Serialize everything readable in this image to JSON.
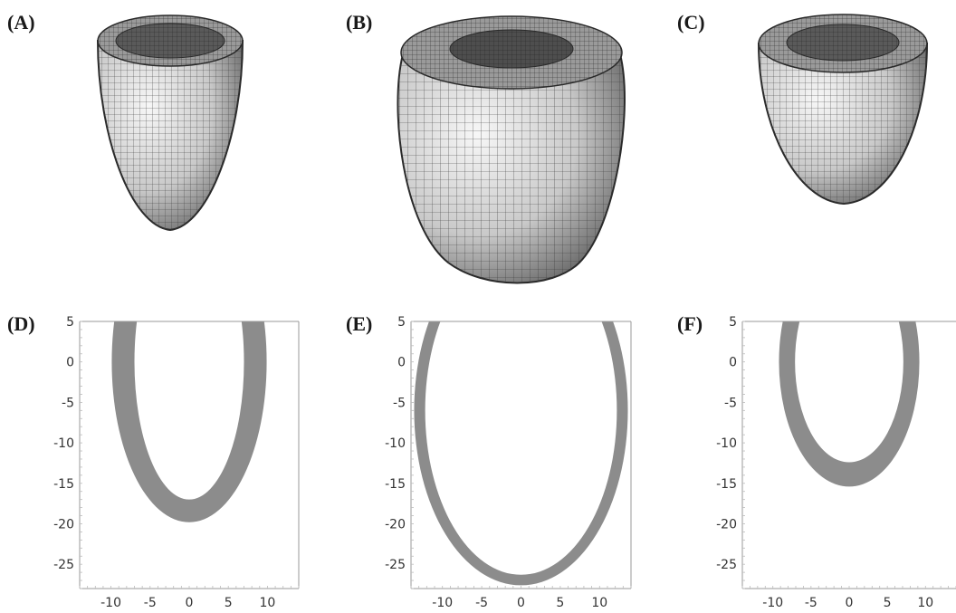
{
  "figure": {
    "colors": {
      "mesh_fill_light": "#f2f2f2",
      "mesh_fill_dark": "#6e6e6e",
      "mesh_line": "#3a3a3a",
      "wall_band": "#8c8c8c",
      "axis": "#999999"
    }
  },
  "panels_3d": [
    {
      "label": "(A)",
      "shape": "truncated-ellipsoid-mesh",
      "proportion": "narrow"
    },
    {
      "label": "(B)",
      "shape": "truncated-ellipsoid-mesh",
      "proportion": "wide"
    },
    {
      "label": "(C)",
      "shape": "truncated-ellipsoid-mesh",
      "proportion": "short"
    }
  ],
  "chart_data": [
    {
      "type": "area",
      "label": "(D)",
      "xlim": [
        -14,
        14
      ],
      "ylim": [
        -28,
        5
      ],
      "xticks": [
        "-10",
        "-5",
        "0",
        "5",
        "10"
      ],
      "xtick_values": [
        -10,
        -5,
        0,
        5,
        10
      ],
      "yticks": [
        "5",
        "0",
        "-5",
        "-10",
        "-15",
        "-20",
        "-25"
      ],
      "ytick_values": [
        5,
        0,
        -5,
        -10,
        -15,
        -20,
        -25
      ],
      "outer_ellipse": {
        "center": [
          0,
          0
        ],
        "rx": 9.9,
        "ry": 19.8
      },
      "inner_ellipse": {
        "center": [
          0,
          0
        ],
        "rx": 7.0,
        "ry": 17.0
      }
    },
    {
      "type": "area",
      "label": "(E)",
      "xlim": [
        -14,
        14
      ],
      "ylim": [
        -28,
        5
      ],
      "xticks": [
        "-10",
        "-5",
        "0",
        "5",
        "10"
      ],
      "xtick_values": [
        -10,
        -5,
        0,
        5,
        10
      ],
      "yticks": [
        "5",
        "0",
        "-5",
        "-10",
        "-15",
        "-20",
        "-25"
      ],
      "ytick_values": [
        5,
        0,
        -5,
        -10,
        -15,
        -20,
        -25
      ],
      "outer_ellipse": {
        "center": [
          0,
          -6
        ],
        "rx": 13.6,
        "ry": 21.6
      },
      "inner_ellipse": {
        "center": [
          0,
          -6
        ],
        "rx": 12.2,
        "ry": 20.3
      }
    },
    {
      "type": "area",
      "label": "(F)",
      "xlim": [
        -14,
        14
      ],
      "ylim": [
        -28,
        5
      ],
      "xticks": [
        "-10",
        "-5",
        "0",
        "5",
        "10"
      ],
      "xtick_values": [
        -10,
        -5,
        0,
        5,
        10
      ],
      "yticks": [
        "5",
        "0",
        "-5",
        "-10",
        "-15",
        "-20",
        "-25"
      ],
      "ytick_values": [
        5,
        0,
        -5,
        -10,
        -15,
        -20,
        -25
      ],
      "outer_ellipse": {
        "center": [
          0,
          0
        ],
        "rx": 9.2,
        "ry": 15.4
      },
      "inner_ellipse": {
        "center": [
          0,
          0
        ],
        "rx": 7.1,
        "ry": 12.4
      }
    }
  ]
}
